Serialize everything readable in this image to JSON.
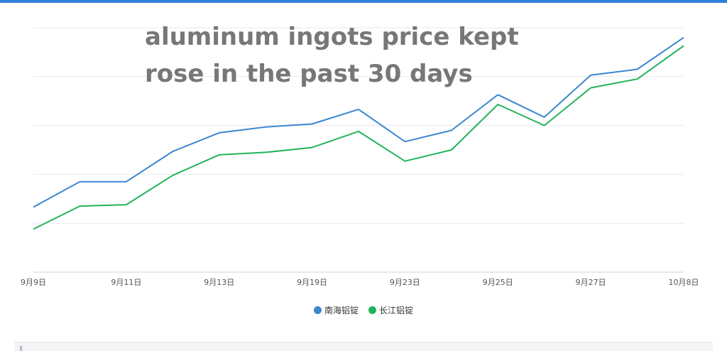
{
  "chart_data": {
    "type": "line",
    "title_lines": [
      "aluminum ingots price kept",
      "rose in the past 30 days"
    ],
    "x_tick_labels": [
      "9月9日",
      "9月11日",
      "9月13日",
      "9月19日",
      "9月23日",
      "9月25日",
      "9月27日",
      "10月8日"
    ],
    "x_tick_positions": [
      0,
      2,
      4,
      6,
      8,
      10,
      12,
      14
    ],
    "x_count": 15,
    "ylim": [
      0,
      5
    ],
    "grid": true,
    "legend_position": "bottom-center",
    "series": [
      {
        "name": "南海铝锭",
        "color": "#3b87cf",
        "values": [
          1.33,
          1.85,
          1.85,
          2.47,
          2.85,
          2.97,
          3.03,
          3.33,
          2.67,
          2.9,
          3.63,
          3.17,
          4.03,
          4.15,
          4.8
        ]
      },
      {
        "name": "长江铝锭",
        "color": "#22b45c",
        "values": [
          0.88,
          1.35,
          1.38,
          1.98,
          2.4,
          2.45,
          2.55,
          2.88,
          2.27,
          2.5,
          3.43,
          3.0,
          3.77,
          3.95,
          4.63
        ]
      }
    ]
  }
}
